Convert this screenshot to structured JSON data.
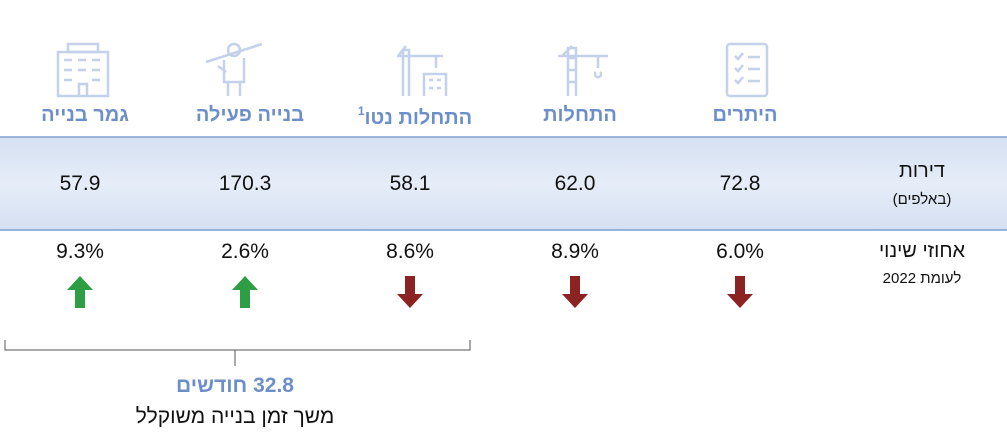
{
  "columns": [
    {
      "header": "היתרים",
      "value": "72.8",
      "change": "6.0%",
      "direction": "down"
    },
    {
      "header": "התחלות",
      "value": "62.0",
      "change": "8.9%",
      "direction": "down"
    },
    {
      "header": "התחלות נטו",
      "footnote": "1",
      "value": "58.1",
      "change": "8.6%",
      "direction": "down"
    },
    {
      "header": "בנייה פעילה",
      "value": "170.3",
      "change": "2.6%",
      "direction": "up"
    },
    {
      "header": "גמר בנייה",
      "value": "57.9",
      "change": "9.3%",
      "direction": "up"
    }
  ],
  "rows": {
    "units": {
      "label": "דירות",
      "sublabel": "(באלפים)"
    },
    "change": {
      "label": "אחוזי שינוי",
      "sublabel": "לעומת 2022"
    }
  },
  "bracket": {
    "value": "32.8 חודשים",
    "label": "משך זמן בנייה משוקלל"
  }
}
